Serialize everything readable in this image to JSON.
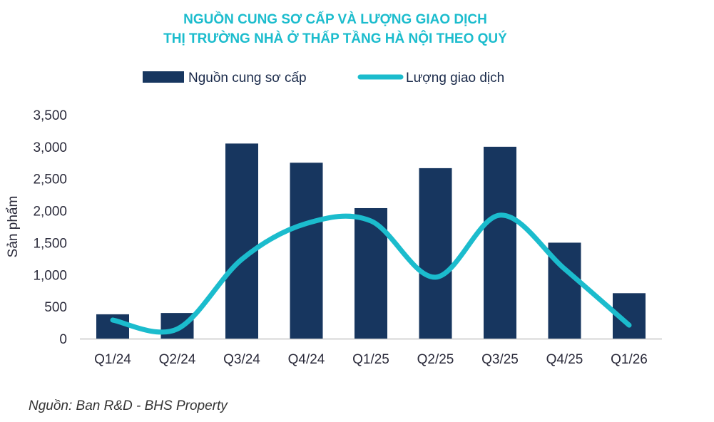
{
  "chart_data": {
    "type": "bar+line",
    "title": [
      "NGUỒN CUNG SƠ CẤP VÀ LƯỢNG GIAO DỊCH",
      "THỊ TRƯỜNG NHÀ Ở THẤP TẦNG HÀ NỘI THEO QUÝ"
    ],
    "ylabel": "Sản phẩm",
    "ylim": [
      0,
      3500
    ],
    "yticks": [
      "0",
      "500",
      "1,000",
      "1,500",
      "2,000",
      "2,500",
      "3,000",
      "3,500"
    ],
    "categories": [
      "Q1/24",
      "Q2/24",
      "Q3/24",
      "Q4/24",
      "Q1/25",
      "Q2/25",
      "Q3/25",
      "Q4/25",
      "Q1/26"
    ],
    "series": [
      {
        "name": "Nguồn cung sơ cấp",
        "type": "bar",
        "color": "#17365f",
        "values": [
          380,
          400,
          3050,
          2750,
          2040,
          2665,
          3000,
          1500,
          710
        ]
      },
      {
        "name": "Lượng giao dịch",
        "type": "line",
        "color": "#1bbccd",
        "values": [
          290,
          150,
          1240,
          1800,
          1840,
          960,
          1930,
          1090,
          210
        ]
      }
    ],
    "legend": "top",
    "grid": false,
    "source": "Nguồn: Ban R&D - BHS Property"
  }
}
